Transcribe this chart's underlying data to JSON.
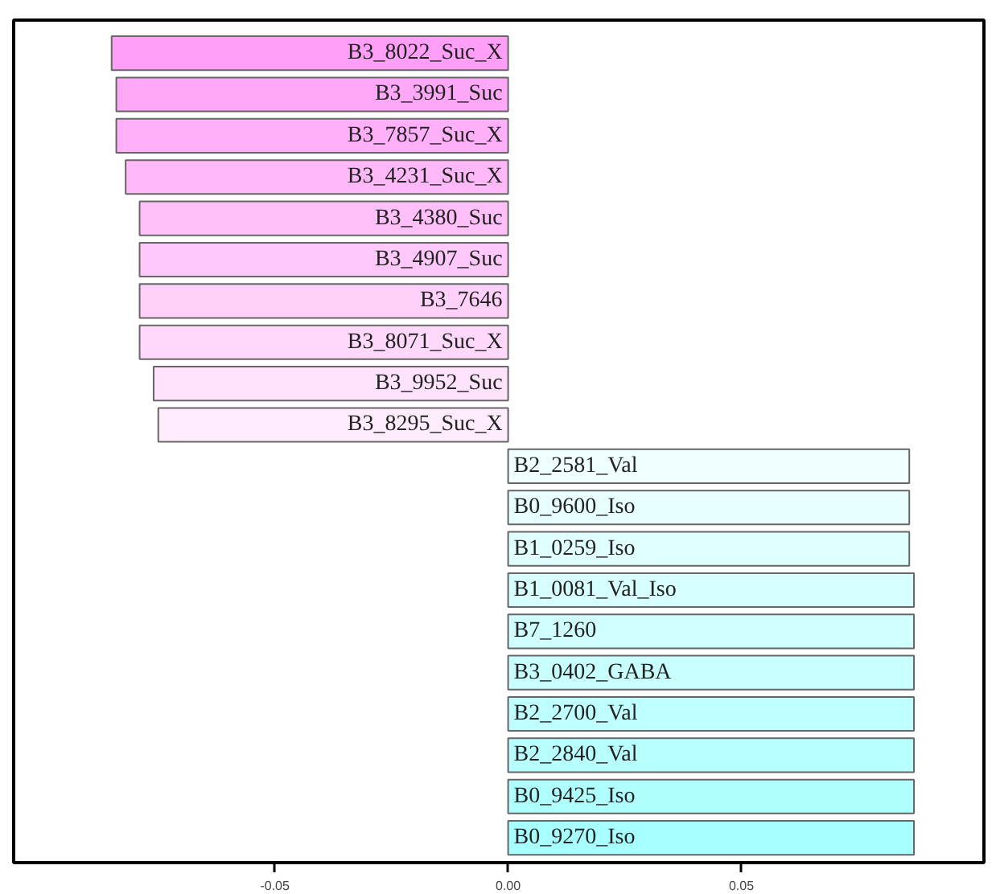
{
  "chart_data": {
    "type": "bar",
    "orientation": "horizontal",
    "categories": [
      "B3_8022_Suc_X",
      "B3_3991_Suc",
      "B3_7857_Suc_X",
      "B3_4231_Suc_X",
      "B3_4380_Suc",
      "B3_4907_Suc",
      "B3_7646",
      "B3_8071_Suc_X",
      "B3_9952_Suc",
      "B3_8295_Suc_X",
      "B2_2581_Val",
      "B0_9600_Iso",
      "B1_0259_Iso",
      "B1_0081_Val_Iso",
      "B7_1260",
      "B3_0402_GABA",
      "B2_2700_Val",
      "B2_2840_Val",
      "B0_9425_Iso",
      "B0_9270_Iso"
    ],
    "values": [
      -0.085,
      -0.084,
      -0.084,
      -0.082,
      -0.079,
      -0.079,
      -0.079,
      -0.079,
      -0.076,
      -0.075,
      0.086,
      0.086,
      0.086,
      0.087,
      0.087,
      0.087,
      0.087,
      0.087,
      0.087,
      0.087
    ],
    "colors": [
      "#ff9ff7",
      "#ffa8f7",
      "#ffb0f8",
      "#ffb8f8",
      "#ffc0f9",
      "#ffc8fa",
      "#ffd0fa",
      "#ffd8fb",
      "#ffe2fc",
      "#ffecfd",
      "#f0ffff",
      "#e8ffff",
      "#e0ffff",
      "#d8ffff",
      "#d0ffff",
      "#c8ffff",
      "#c0ffff",
      "#b8ffff",
      "#b0ffff",
      "#a8ffff"
    ],
    "xlim": [
      -0.106,
      0.102
    ],
    "xticks": [
      {
        "value": -0.05,
        "label": "-0.05"
      },
      {
        "value": 0,
        "label": "0.00"
      },
      {
        "value": 0.05,
        "label": "0.05"
      }
    ],
    "grid": false,
    "tick_labels": "x"
  }
}
